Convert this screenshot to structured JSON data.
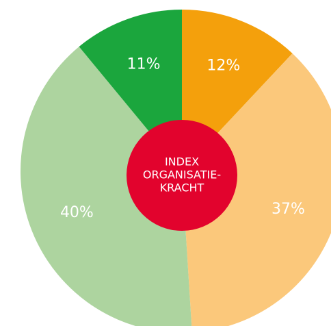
{
  "chart_data": {
    "type": "pie",
    "values": [
      12,
      37,
      40,
      11
    ],
    "value_labels": [
      "12%",
      "37%",
      "40%",
      "11%"
    ],
    "colors": [
      "#f4a00c",
      "#fbc87b",
      "#add49f",
      "#1ba63d"
    ],
    "center_label": [
      "INDEX",
      "ORGANISATIE-",
      "KRACHT"
    ],
    "center_color": "#e2032d"
  }
}
